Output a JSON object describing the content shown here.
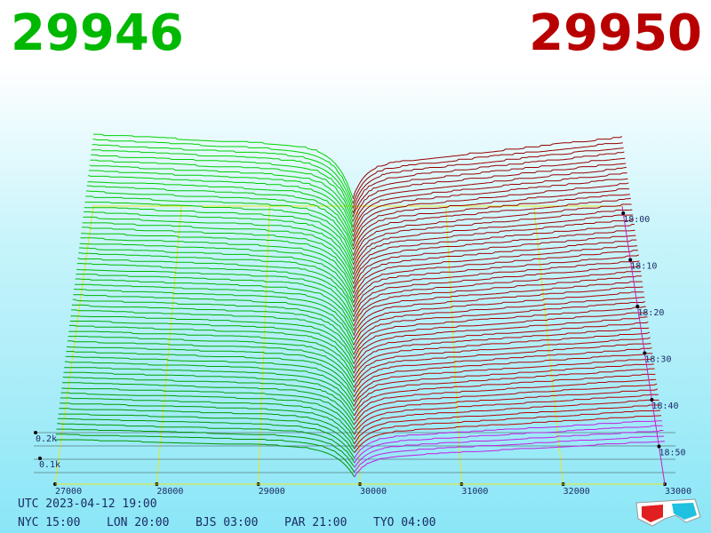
{
  "header": {
    "bid": "29946",
    "ask": "29950"
  },
  "axis": {
    "price_ticks": [
      "27000",
      "28000",
      "29000",
      "30000",
      "31000",
      "32000",
      "33000"
    ],
    "volume_ticks": [
      "0.2k",
      "0.1k"
    ],
    "time_ticks": [
      "18:00",
      "18:10",
      "18:20",
      "18:30",
      "18:40",
      "18:50"
    ]
  },
  "footer": {
    "utc": "UTC 2023-04-12 19:00",
    "zones": [
      "NYC 15:00",
      "LON 20:00",
      "BJS 03:00",
      "PAR 21:00",
      "TYO 04:00"
    ]
  }
}
